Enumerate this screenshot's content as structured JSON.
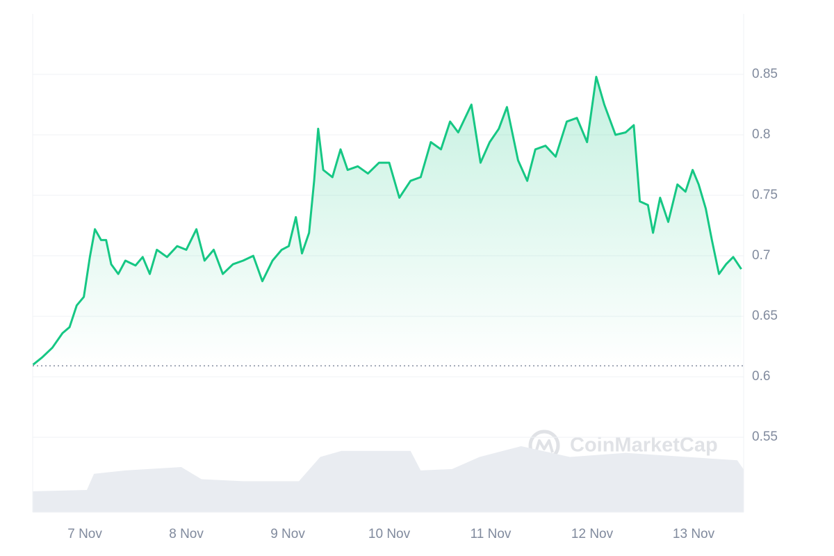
{
  "chart_data": {
    "type": "line",
    "watermark": "CoinMarketCap",
    "color": "#16c784",
    "xlim": [
      -0.514,
      6.493
    ],
    "ylim": [
      0.488,
      0.9
    ],
    "xticks": [
      {
        "value": 0,
        "label": "7 Nov"
      },
      {
        "value": 1,
        "label": "8 Nov"
      },
      {
        "value": 2,
        "label": "9 Nov"
      },
      {
        "value": 3,
        "label": "10 Nov"
      },
      {
        "value": 4,
        "label": "11 Nov"
      },
      {
        "value": 5,
        "label": "12 Nov"
      },
      {
        "value": 6,
        "label": "13 Nov"
      }
    ],
    "yticks": [
      0.55,
      0.6,
      0.65,
      0.7,
      0.75,
      0.8,
      0.85
    ],
    "grid": true,
    "baseline": 0.609,
    "x": [
      -0.51,
      -0.42,
      -0.32,
      -0.22,
      -0.15,
      -0.08,
      -0.01,
      0.05,
      0.1,
      0.16,
      0.21,
      0.26,
      0.33,
      0.4,
      0.5,
      0.57,
      0.64,
      0.71,
      0.81,
      0.91,
      1.0,
      1.1,
      1.18,
      1.27,
      1.36,
      1.46,
      1.56,
      1.66,
      1.75,
      1.85,
      1.94,
      2.01,
      2.08,
      2.14,
      2.21,
      2.26,
      2.3,
      2.35,
      2.44,
      2.52,
      2.59,
      2.69,
      2.79,
      2.9,
      3.0,
      3.1,
      3.21,
      3.31,
      3.41,
      3.51,
      3.6,
      3.68,
      3.81,
      3.9,
      3.99,
      4.08,
      4.16,
      4.27,
      4.36,
      4.44,
      4.54,
      4.64,
      4.75,
      4.85,
      4.95,
      5.04,
      5.12,
      5.23,
      5.33,
      5.41,
      5.47,
      5.55,
      5.6,
      5.67,
      5.75,
      5.84,
      5.92,
      5.99,
      6.05,
      6.12,
      6.18,
      6.25,
      6.32,
      6.39,
      6.47
    ],
    "values": [
      0.61,
      0.616,
      0.624,
      0.636,
      0.641,
      0.659,
      0.666,
      0.699,
      0.722,
      0.713,
      0.713,
      0.693,
      0.685,
      0.696,
      0.692,
      0.699,
      0.685,
      0.705,
      0.699,
      0.708,
      0.705,
      0.722,
      0.696,
      0.705,
      0.685,
      0.693,
      0.696,
      0.7,
      0.679,
      0.696,
      0.705,
      0.708,
      0.732,
      0.702,
      0.719,
      0.762,
      0.805,
      0.771,
      0.765,
      0.788,
      0.771,
      0.774,
      0.768,
      0.777,
      0.777,
      0.748,
      0.762,
      0.765,
      0.794,
      0.788,
      0.811,
      0.802,
      0.825,
      0.777,
      0.794,
      0.805,
      0.823,
      0.779,
      0.762,
      0.788,
      0.791,
      0.782,
      0.811,
      0.814,
      0.794,
      0.848,
      0.825,
      0.8,
      0.802,
      0.808,
      0.745,
      0.742,
      0.719,
      0.748,
      0.728,
      0.759,
      0.753,
      0.771,
      0.759,
      0.739,
      0.713,
      0.685,
      0.693,
      0.699,
      0.689
    ],
    "volume": {
      "color": "#e9ecf1",
      "ylim": [
        0,
        100
      ],
      "x": [
        -0.51,
        0.02,
        0.09,
        0.4,
        0.95,
        1.15,
        1.56,
        2.11,
        2.32,
        2.53,
        3.21,
        3.31,
        3.62,
        3.89,
        4.3,
        4.78,
        5.33,
        6.43,
        6.49
      ],
      "values": [
        31,
        33,
        57,
        62,
        67,
        49,
        46,
        46,
        82,
        91,
        91,
        62,
        64,
        82,
        98,
        82,
        88,
        77,
        64
      ]
    }
  }
}
